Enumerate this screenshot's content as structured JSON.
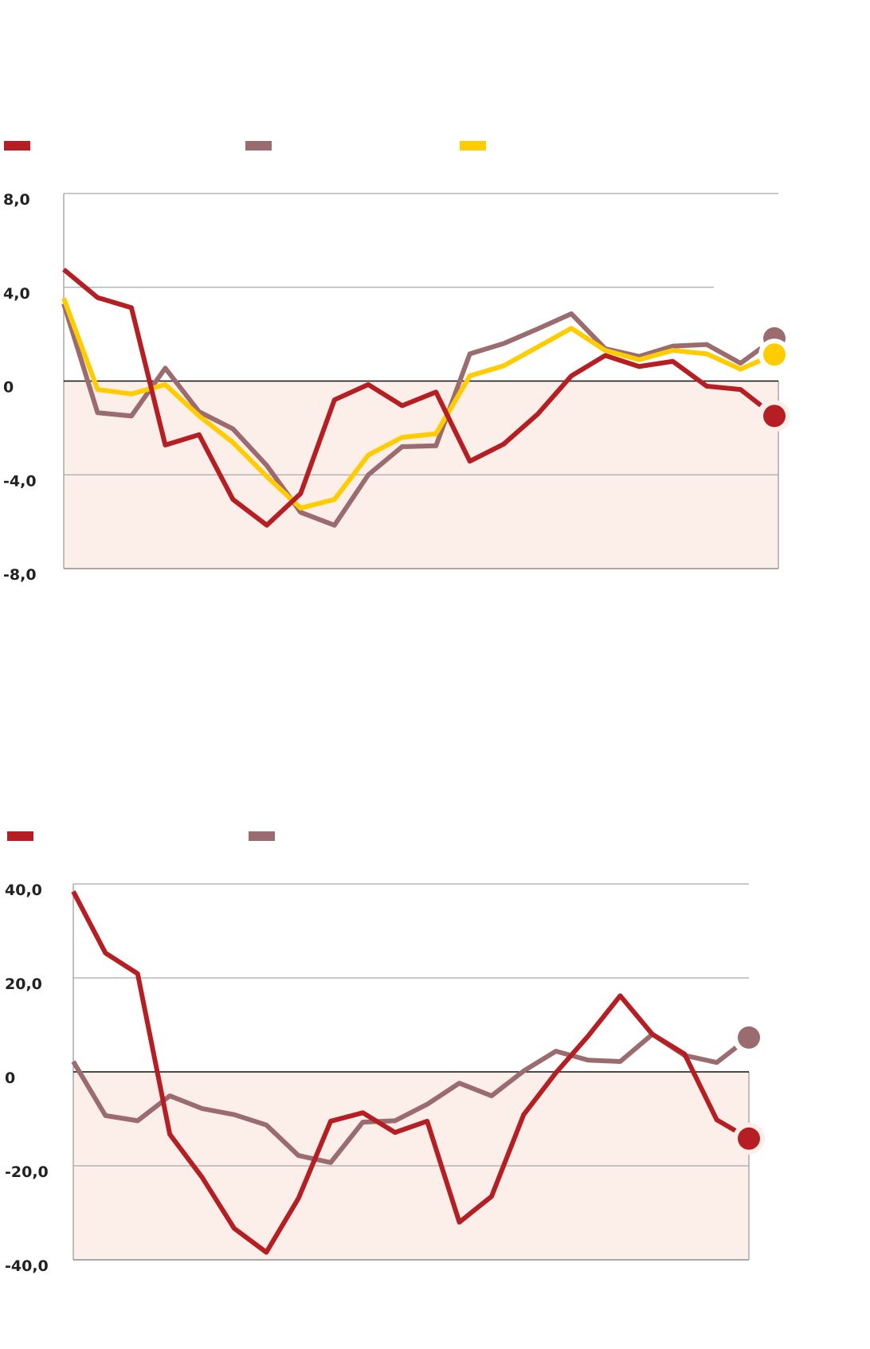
{
  "colors": {
    "red": "#b51f24",
    "mauve": "#9a6b6f",
    "yellow": "#ffcc00",
    "negative_fill": "#fcefea",
    "grid": "#a8a8a8",
    "zero": "#111111"
  },
  "chart_data": [
    {
      "type": "line",
      "ylim": [
        -8,
        8
      ],
      "yticks": [
        8,
        4,
        0,
        -4,
        -8
      ],
      "ytick_labels": [
        "8,0",
        "4,0",
        "0",
        "-4,0",
        "-8,0"
      ],
      "legend": "top",
      "grid": true,
      "negative_region_shaded": true,
      "series": [
        {
          "color": "red",
          "values": [
            4.76,
            3.56,
            3.13,
            -2.73,
            -2.29,
            -5.05,
            -6.15,
            -4.8,
            -0.8,
            -0.15,
            -1.05,
            -0.47,
            -3.42,
            -2.69,
            -1.42,
            0.22,
            1.09,
            0.62,
            0.84,
            -0.22,
            -0.36,
            -1.49
          ]
        },
        {
          "color": "mauve",
          "values": [
            3.3,
            -1.35,
            -1.49,
            0.55,
            -1.31,
            -2.04,
            -3.6,
            -5.6,
            -6.15,
            -4.0,
            -2.8,
            -2.76,
            1.16,
            1.6,
            2.22,
            2.87,
            1.38,
            1.05,
            1.49,
            1.56,
            0.76,
            1.82
          ]
        },
        {
          "color": "yellow",
          "values": [
            3.53,
            -0.36,
            -0.55,
            -0.15,
            -1.49,
            -2.62,
            -4.07,
            -5.42,
            -5.05,
            -3.16,
            -2.4,
            -2.25,
            0.22,
            0.65,
            1.45,
            2.25,
            1.31,
            0.91,
            1.31,
            1.16,
            0.51,
            1.13
          ]
        }
      ]
    },
    {
      "type": "line",
      "ylim": [
        -40,
        40
      ],
      "yticks": [
        40,
        20,
        0,
        -20,
        -40
      ],
      "ytick_labels": [
        "40,0",
        "20,0",
        "0",
        "-20,0",
        "-40,0"
      ],
      "legend": "top",
      "grid": true,
      "negative_region_shaded": true,
      "series": [
        {
          "color": "red",
          "values": [
            38.4,
            25.3,
            20.9,
            -13.3,
            -22.4,
            -33.3,
            -38.4,
            -26.9,
            -10.5,
            -8.7,
            -12.9,
            -10.5,
            -32.0,
            -26.5,
            -9.1,
            -0.2,
            7.6,
            16.2,
            8.0,
            3.8,
            -10.2,
            -14.2
          ]
        },
        {
          "color": "mauve",
          "values": [
            2.2,
            -9.3,
            -10.4,
            -5.1,
            -7.8,
            -9.1,
            -11.3,
            -17.8,
            -19.3,
            -10.7,
            -10.4,
            -6.9,
            -2.4,
            -5.1,
            0.2,
            4.4,
            2.5,
            2.2,
            8.0,
            3.5,
            2.0,
            7.3
          ]
        }
      ]
    }
  ]
}
